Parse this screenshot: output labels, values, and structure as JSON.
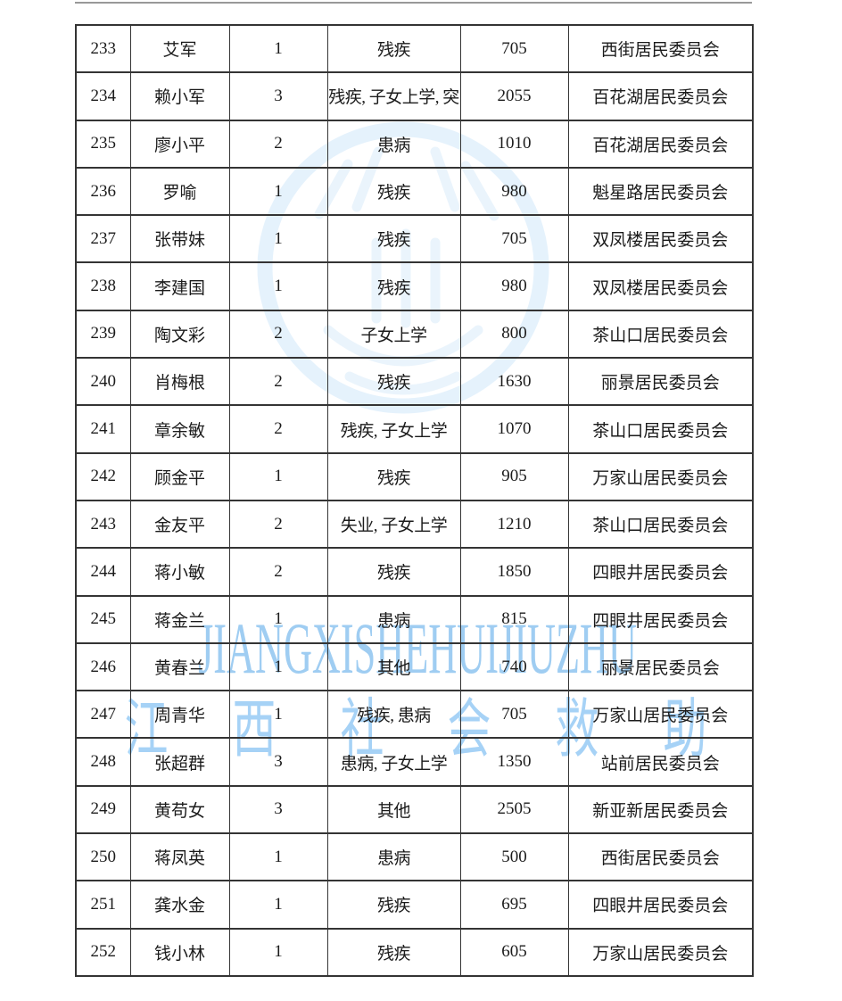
{
  "page": {
    "background": "#ffffff"
  },
  "colors": {
    "border": "#343434",
    "text": "#1b1b1b",
    "watermark_blue": "#aed6f2"
  },
  "icons": {
    "seal_watermark": "circle-emblem-watermark"
  },
  "watermark": {
    "latin": "JIANGXISHEHUIJIUZHU",
    "hanzi_chars": [
      "江",
      "西",
      "社",
      "会",
      "救",
      "助"
    ]
  },
  "table": {
    "row_keys": [
      "no",
      "name",
      "count",
      "reason",
      "amount",
      "committee"
    ],
    "rows": [
      {
        "no": "233",
        "name": "艾军",
        "count": "1",
        "reason": "残疾",
        "amount": "705",
        "committee": "西街居民委员会"
      },
      {
        "no": "234",
        "name": "赖小军",
        "count": "3",
        "reason": "残疾, 子女上学, 突",
        "amount": "2055",
        "committee": "百花湖居民委员会"
      },
      {
        "no": "235",
        "name": "廖小平",
        "count": "2",
        "reason": "患病",
        "amount": "1010",
        "committee": "百花湖居民委员会"
      },
      {
        "no": "236",
        "name": "罗喻",
        "count": "1",
        "reason": "残疾",
        "amount": "980",
        "committee": "魁星路居民委员会"
      },
      {
        "no": "237",
        "name": "张带妹",
        "count": "1",
        "reason": "残疾",
        "amount": "705",
        "committee": "双凤楼居民委员会"
      },
      {
        "no": "238",
        "name": "李建国",
        "count": "1",
        "reason": "残疾",
        "amount": "980",
        "committee": "双凤楼居民委员会"
      },
      {
        "no": "239",
        "name": "陶文彩",
        "count": "2",
        "reason": "子女上学",
        "amount": "800",
        "committee": "茶山口居民委员会"
      },
      {
        "no": "240",
        "name": "肖梅根",
        "count": "2",
        "reason": "残疾",
        "amount": "1630",
        "committee": "丽景居民委员会"
      },
      {
        "no": "241",
        "name": "章余敏",
        "count": "2",
        "reason": "残疾, 子女上学",
        "amount": "1070",
        "committee": "茶山口居民委员会"
      },
      {
        "no": "242",
        "name": "顾金平",
        "count": "1",
        "reason": "残疾",
        "amount": "905",
        "committee": "万家山居民委员会"
      },
      {
        "no": "243",
        "name": "金友平",
        "count": "2",
        "reason": "失业, 子女上学",
        "amount": "1210",
        "committee": "茶山口居民委员会"
      },
      {
        "no": "244",
        "name": "蒋小敏",
        "count": "2",
        "reason": "残疾",
        "amount": "1850",
        "committee": "四眼井居民委员会"
      },
      {
        "no": "245",
        "name": "蒋金兰",
        "count": "1",
        "reason": "患病",
        "amount": "815",
        "committee": "四眼井居民委员会"
      },
      {
        "no": "246",
        "name": "黄春兰",
        "count": "1",
        "reason": "其他",
        "amount": "740",
        "committee": "丽景居民委员会"
      },
      {
        "no": "247",
        "name": "周青华",
        "count": "1",
        "reason": "残疾, 患病",
        "amount": "705",
        "committee": "万家山居民委员会"
      },
      {
        "no": "248",
        "name": "张超群",
        "count": "3",
        "reason": "患病, 子女上学",
        "amount": "1350",
        "committee": "站前居民委员会"
      },
      {
        "no": "249",
        "name": "黄苟女",
        "count": "3",
        "reason": "其他",
        "amount": "2505",
        "committee": "新亚新居民委员会"
      },
      {
        "no": "250",
        "name": "蒋凤英",
        "count": "1",
        "reason": "患病",
        "amount": "500",
        "committee": "西街居民委员会"
      },
      {
        "no": "251",
        "name": "龚水金",
        "count": "1",
        "reason": "残疾",
        "amount": "695",
        "committee": "四眼井居民委员会"
      },
      {
        "no": "252",
        "name": "钱小林",
        "count": "1",
        "reason": "残疾",
        "amount": "605",
        "committee": "万家山居民委员会"
      }
    ]
  }
}
